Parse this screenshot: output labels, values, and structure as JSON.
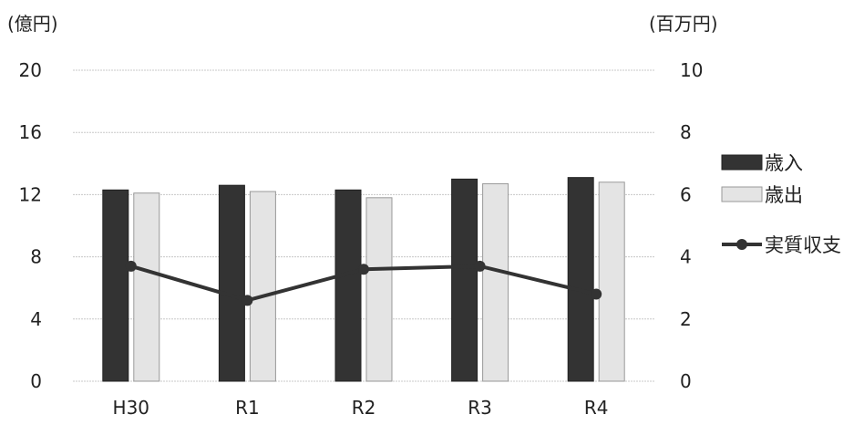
{
  "chart_data": {
    "type": "bar",
    "categories": [
      "H30",
      "R1",
      "R2",
      "R3",
      "R4"
    ],
    "series": [
      {
        "name": "歳入",
        "type": "bar",
        "axis": "left",
        "color": "#333333",
        "values": [
          12.3,
          12.6,
          12.3,
          13.0,
          13.1
        ]
      },
      {
        "name": "歳出",
        "type": "bar",
        "axis": "left",
        "color": "#e4e4e4",
        "values": [
          12.1,
          12.2,
          11.8,
          12.7,
          12.8
        ]
      },
      {
        "name": "実質収支",
        "type": "line",
        "axis": "right",
        "color": "#333333",
        "values": [
          3.7,
          2.6,
          3.6,
          3.7,
          2.8
        ]
      }
    ],
    "y_left": {
      "unit": "(億円)",
      "ylim": [
        0,
        20
      ],
      "ticks": [
        "0",
        "4",
        "8",
        "12",
        "16",
        "20"
      ]
    },
    "y_right": {
      "unit": "(百万円)",
      "ylim": [
        0,
        10
      ],
      "ticks": [
        "0",
        "2",
        "4",
        "6",
        "8",
        "10"
      ]
    },
    "grid": true,
    "legend_position": "right"
  }
}
